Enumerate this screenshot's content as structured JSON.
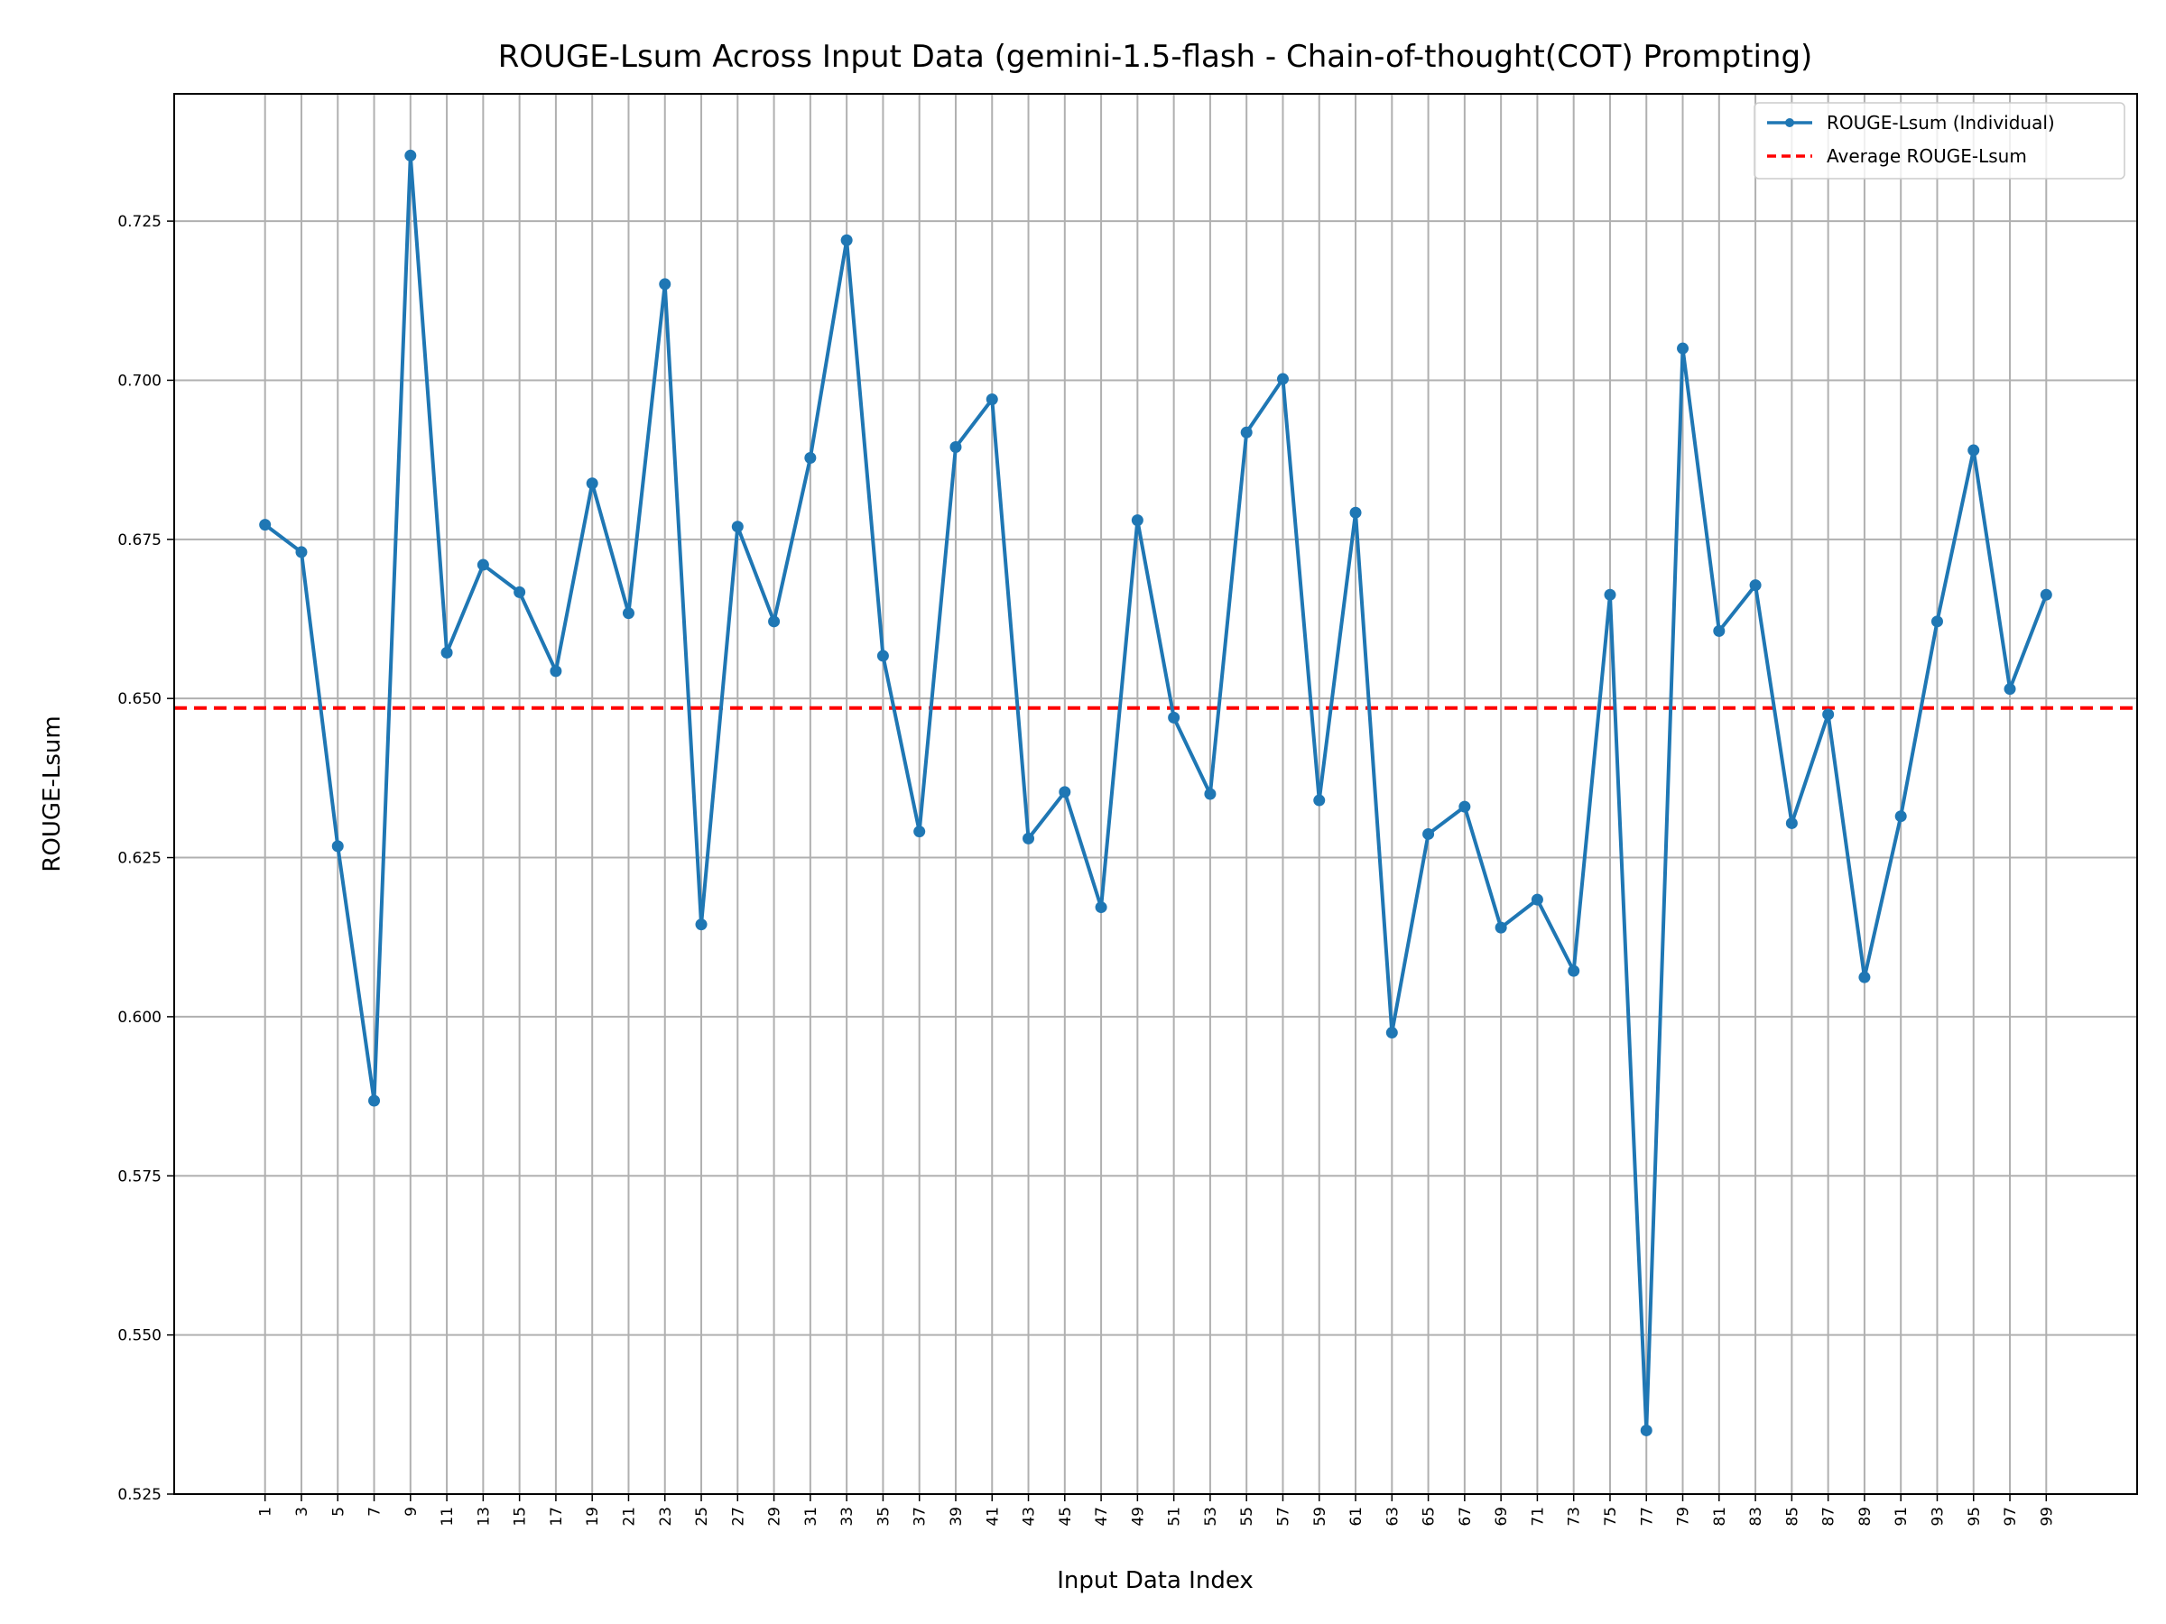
{
  "chart_data": {
    "type": "line",
    "title": "ROUGE-Lsum Across Input Data (gemini-1.5-flash - Chain-of-thought(COT) Prompting)",
    "xlabel": "Input Data Index",
    "ylabel": "ROUGE-Lsum",
    "x": [
      1,
      3,
      5,
      7,
      9,
      11,
      13,
      15,
      17,
      19,
      21,
      23,
      25,
      27,
      29,
      31,
      33,
      35,
      37,
      39,
      41,
      43,
      45,
      47,
      49,
      51,
      53,
      55,
      57,
      59,
      61,
      63,
      65,
      67,
      69,
      71,
      73,
      75,
      77,
      79,
      81,
      83,
      85,
      87,
      89,
      91,
      93,
      95,
      97,
      99
    ],
    "x_tick_labels": [
      "1",
      "3",
      "5",
      "7",
      "9",
      "11",
      "13",
      "15",
      "17",
      "19",
      "21",
      "23",
      "25",
      "27",
      "29",
      "31",
      "33",
      "35",
      "37",
      "39",
      "41",
      "43",
      "45",
      "47",
      "49",
      "51",
      "53",
      "55",
      "57",
      "59",
      "61",
      "63",
      "65",
      "67",
      "69",
      "71",
      "73",
      "75",
      "77",
      "79",
      "81",
      "83",
      "85",
      "87",
      "89",
      "91",
      "93",
      "95",
      "97",
      "99"
    ],
    "xlim": [
      -4,
      104
    ],
    "ylim": [
      0.525,
      0.745
    ],
    "y_ticks": [
      0.525,
      0.55,
      0.575,
      0.6,
      0.625,
      0.65,
      0.675,
      0.7,
      0.725
    ],
    "y_tick_labels": [
      "0.525",
      "0.550",
      "0.575",
      "0.600",
      "0.625",
      "0.650",
      "0.675",
      "0.700",
      "0.725"
    ],
    "grid": true,
    "legend_position": "top-right",
    "series": [
      {
        "name": "ROUGE-Lsum (Individual)",
        "color": "#1f77b4",
        "style": "line-with-markers",
        "values": [
          0.6773,
          0.673,
          0.6268,
          0.5868,
          0.7353,
          0.6572,
          0.671,
          0.6667,
          0.6543,
          0.6838,
          0.6634,
          0.7151,
          0.6145,
          0.677,
          0.6621,
          0.6878,
          0.722,
          0.6567,
          0.6291,
          0.6895,
          0.697,
          0.628,
          0.6353,
          0.6172,
          0.678,
          0.647,
          0.635,
          0.6918,
          0.7002,
          0.634,
          0.6792,
          0.5975,
          0.6287,
          0.633,
          0.614,
          0.6184,
          0.6072,
          0.6663,
          0.535,
          0.705,
          0.6606,
          0.6678,
          0.6304,
          0.6475,
          0.6062,
          0.6315,
          0.6621,
          0.689,
          0.6515,
          0.6663
        ]
      },
      {
        "name": "Average ROUGE-Lsum",
        "color": "#ff0000",
        "style": "dashed-horizontal",
        "value": 0.6485
      }
    ]
  }
}
